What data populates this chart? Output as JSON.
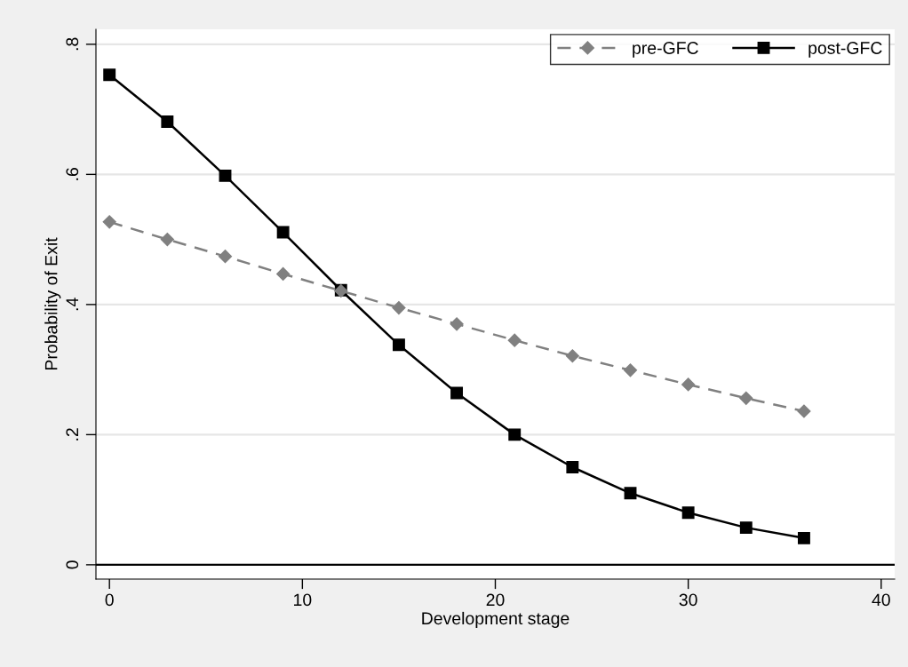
{
  "chart_data": {
    "type": "line",
    "xlabel": "Development stage",
    "ylabel": "Probability of Exit",
    "x": [
      0,
      3,
      6,
      9,
      12,
      15,
      18,
      21,
      24,
      27,
      30,
      33,
      36
    ],
    "series": [
      {
        "name": "pre-GFC",
        "color": "#808080",
        "line_style": "dashed",
        "marker": "diamond",
        "values": [
          0.527,
          0.5,
          0.474,
          0.447,
          0.421,
          0.395,
          0.37,
          0.345,
          0.321,
          0.299,
          0.277,
          0.256,
          0.236
        ]
      },
      {
        "name": "post-GFC",
        "color": "#000000",
        "line_style": "solid",
        "marker": "square",
        "values": [
          0.753,
          0.681,
          0.598,
          0.511,
          0.422,
          0.338,
          0.264,
          0.2,
          0.15,
          0.11,
          0.08,
          0.057,
          0.041
        ]
      }
    ],
    "xlim": [
      -0.7,
      40.7
    ],
    "ylim": [
      -0.022,
      0.823
    ],
    "xticks": [
      0,
      10,
      20,
      30,
      40
    ],
    "yticks": [
      {
        "value": 0,
        "label": "0"
      },
      {
        "value": 0.2,
        "label": ".2"
      },
      {
        "value": 0.4,
        "label": ".4"
      },
      {
        "value": 0.6,
        "label": ".6"
      },
      {
        "value": 0.8,
        "label": ".8"
      }
    ],
    "grid": "y",
    "legend": "top right",
    "ref_lines": [
      {
        "axis": "y",
        "value": 0,
        "label": null,
        "color": "#000000"
      }
    ]
  }
}
